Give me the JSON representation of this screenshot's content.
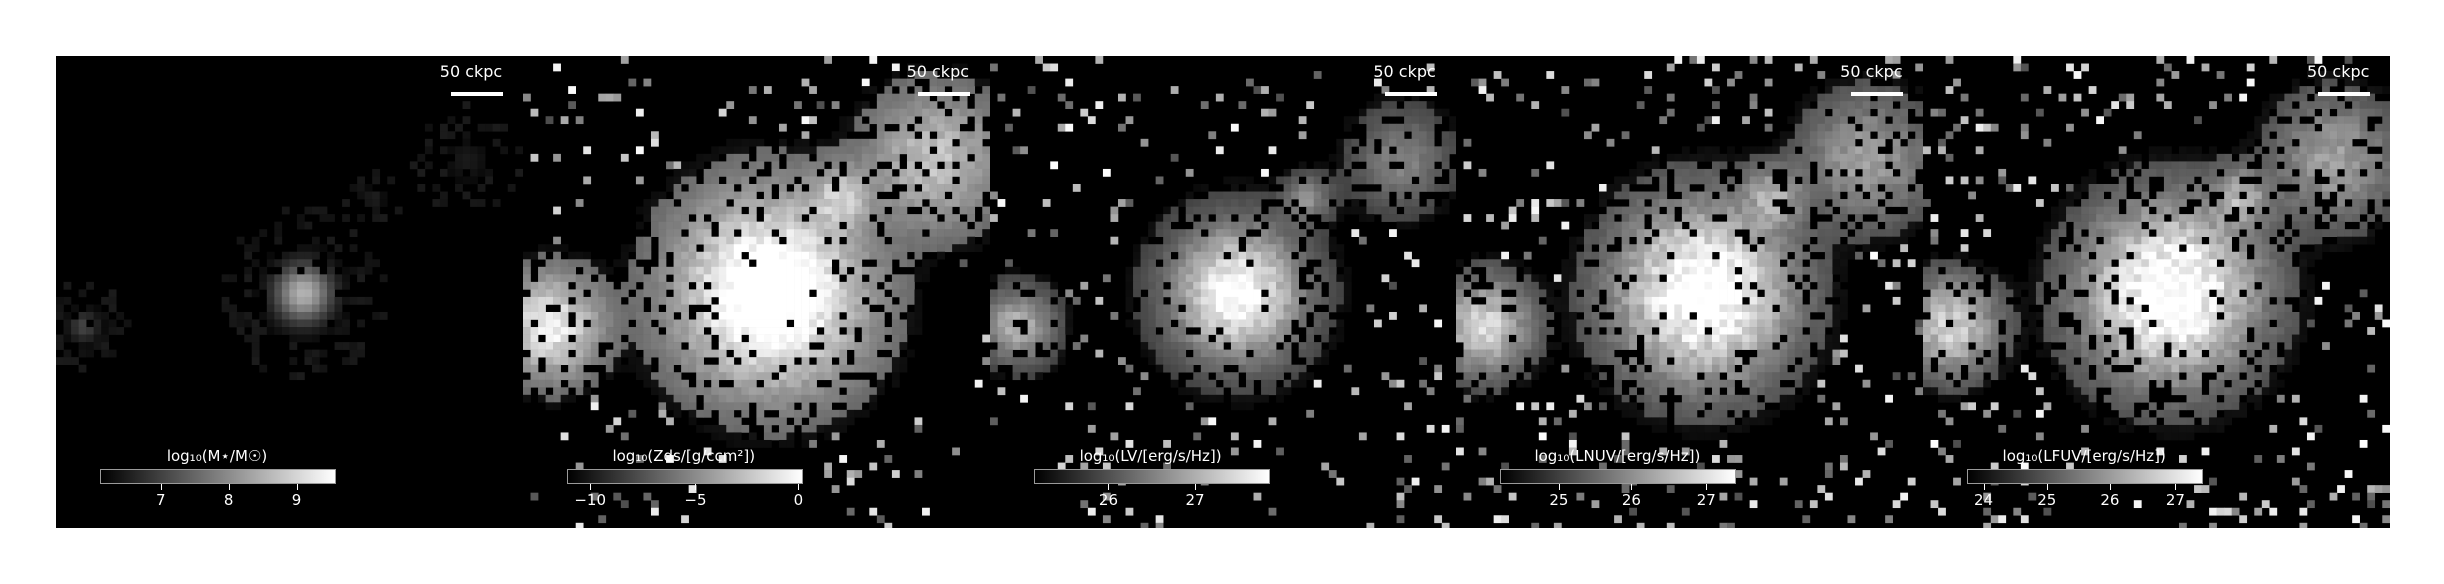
{
  "figure": {
    "panels": [
      {
        "id": "stellar-mass",
        "scalebar_label": "50 ckpc",
        "colorbar": {
          "label": "log₁₀(M⋆/M☉)",
          "ticks": [
            "7",
            "8",
            "9"
          ],
          "tick_fracs": [
            0.26,
            0.55,
            0.84
          ]
        }
      },
      {
        "id": "dust",
        "scalebar_label": "50 ckpc",
        "colorbar": {
          "label": "log₁₀(Zds/[g/ccm²])",
          "ticks": [
            "−10",
            "−5",
            "0"
          ],
          "tick_fracs": [
            0.1,
            0.55,
            0.99
          ]
        }
      },
      {
        "id": "v-band",
        "scalebar_label": "50 ckpc",
        "colorbar": {
          "label": "log₁₀(LV/[erg/s/Hz])",
          "ticks": [
            "26",
            "27"
          ],
          "tick_fracs": [
            0.32,
            0.69
          ]
        }
      },
      {
        "id": "nuv-band",
        "scalebar_label": "50 ckpc",
        "colorbar": {
          "label": "log₁₀(LNUV/[erg/s/Hz])",
          "ticks": [
            "25",
            "26",
            "27"
          ],
          "tick_fracs": [
            0.25,
            0.56,
            0.88
          ]
        }
      },
      {
        "id": "fuv-band",
        "scalebar_label": "50 ckpc",
        "colorbar": {
          "label": "log₁₀(LFUV/[erg/s/Hz])",
          "ticks": [
            "24",
            "25",
            "26",
            "27"
          ],
          "tick_fracs": [
            0.07,
            0.34,
            0.61,
            0.89
          ]
        }
      }
    ],
    "colors": {
      "background": "#000000",
      "text": "#ffffff",
      "page": "#ffffff"
    }
  }
}
